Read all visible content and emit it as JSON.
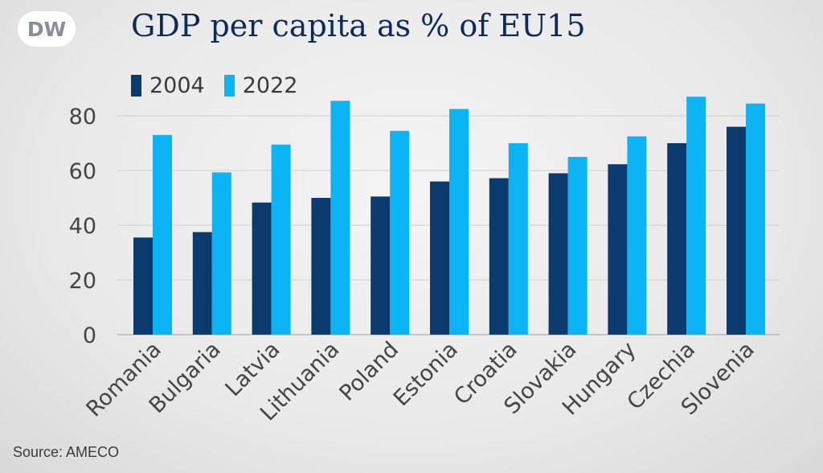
{
  "brand": {
    "logo_text": "DW"
  },
  "title": "GDP per capita as % of EU15",
  "source": "Source: AMECO",
  "colors": {
    "2004": "#0b3a6e",
    "2022": "#0ab4f5"
  },
  "chart_data": {
    "type": "bar",
    "title": "GDP per capita as % of EU15",
    "categories": [
      "Romania",
      "Bulgaria",
      "Latvia",
      "Lithuania",
      "Poland",
      "Estonia",
      "Croatia",
      "Slovakia",
      "Hungary",
      "Czechia",
      "Slovenia"
    ],
    "series": [
      {
        "name": "2004",
        "values": [
          35.5,
          37.5,
          48.3,
          50,
          50.5,
          56,
          57.2,
          59,
          62.3,
          70,
          76
        ]
      },
      {
        "name": "2022",
        "values": [
          73,
          59.3,
          69.5,
          85.5,
          74.5,
          82.5,
          70,
          65,
          72.5,
          87,
          84.5
        ]
      }
    ],
    "yticks": [
      0,
      20,
      40,
      60,
      80
    ],
    "ylim": [
      0,
      90
    ],
    "xlabel": "",
    "ylabel": "",
    "grid": true,
    "legend": "top-left"
  }
}
